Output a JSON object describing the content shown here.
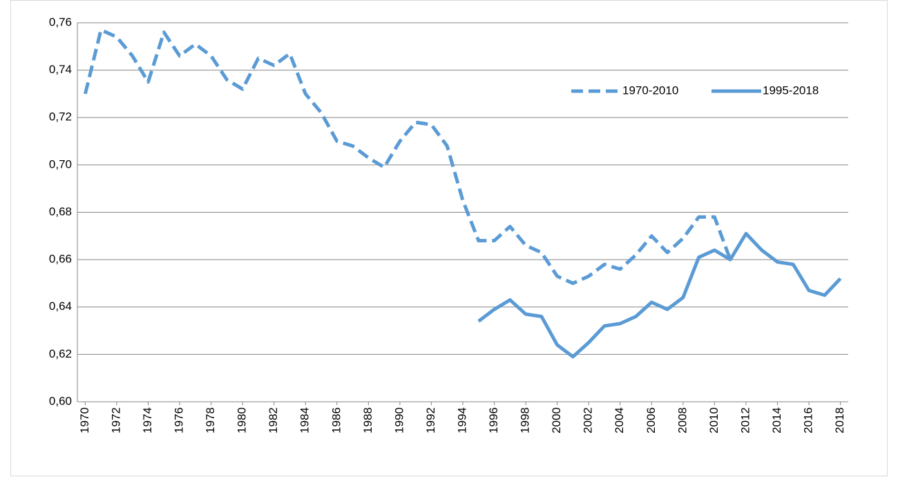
{
  "chart_data": {
    "type": "line",
    "x": [
      1970,
      1971,
      1972,
      1973,
      1974,
      1975,
      1976,
      1977,
      1978,
      1979,
      1980,
      1981,
      1982,
      1983,
      1984,
      1985,
      1986,
      1987,
      1988,
      1989,
      1990,
      1991,
      1992,
      1993,
      1994,
      1995,
      1996,
      1997,
      1998,
      1999,
      2000,
      2001,
      2002,
      2003,
      2004,
      2005,
      2006,
      2007,
      2008,
      2009,
      2010,
      2011,
      2012,
      2013,
      2014,
      2015,
      2016,
      2017,
      2018
    ],
    "series": [
      {
        "name": "1970-2010",
        "color": "#5b9bd5",
        "line_style": "dashed",
        "values": [
          0.73,
          0.757,
          0.754,
          0.746,
          0.735,
          0.756,
          0.746,
          0.751,
          0.746,
          0.736,
          0.732,
          0.745,
          0.742,
          0.747,
          0.73,
          0.722,
          0.71,
          0.708,
          0.703,
          0.699,
          0.71,
          0.718,
          0.717,
          0.708,
          0.685,
          0.668,
          0.668,
          0.674,
          0.666,
          0.663,
          0.653,
          0.65,
          0.653,
          0.658,
          0.656,
          0.662,
          0.67,
          0.663,
          0.669,
          0.678,
          0.678,
          0.66,
          null,
          null,
          null,
          null,
          null,
          null,
          null
        ]
      },
      {
        "name": "1995-2018",
        "color": "#5b9bd5",
        "line_style": "solid",
        "values": [
          null,
          null,
          null,
          null,
          null,
          null,
          null,
          null,
          null,
          null,
          null,
          null,
          null,
          null,
          null,
          null,
          null,
          null,
          null,
          null,
          null,
          null,
          null,
          null,
          null,
          0.634,
          0.639,
          0.643,
          0.637,
          0.636,
          0.624,
          0.619,
          0.625,
          0.632,
          0.633,
          0.636,
          0.642,
          0.639,
          0.644,
          0.661,
          0.664,
          0.66,
          0.671,
          0.664,
          0.659,
          0.658,
          0.647,
          0.645,
          0.652
        ]
      }
    ],
    "xlim": [
      1969.5,
      2018.5
    ],
    "xticks": [
      1970,
      1972,
      1974,
      1976,
      1978,
      1980,
      1982,
      1984,
      1986,
      1988,
      1990,
      1992,
      1994,
      1996,
      1998,
      2000,
      2002,
      2004,
      2006,
      2008,
      2010,
      2012,
      2014,
      2016,
      2018
    ],
    "ylim": [
      0.6,
      0.76
    ],
    "yticks": [
      {
        "value": 0.6,
        "label": "0,60"
      },
      {
        "value": 0.62,
        "label": "0,62"
      },
      {
        "value": 0.64,
        "label": "0,64"
      },
      {
        "value": 0.66,
        "label": "0,66"
      },
      {
        "value": 0.68,
        "label": "0,68"
      },
      {
        "value": 0.7,
        "label": "0,70"
      },
      {
        "value": 0.72,
        "label": "0,72"
      },
      {
        "value": 0.74,
        "label": "0,74"
      },
      {
        "value": 0.76,
        "label": "0,76"
      }
    ],
    "grid": true,
    "legend": "top-right"
  }
}
